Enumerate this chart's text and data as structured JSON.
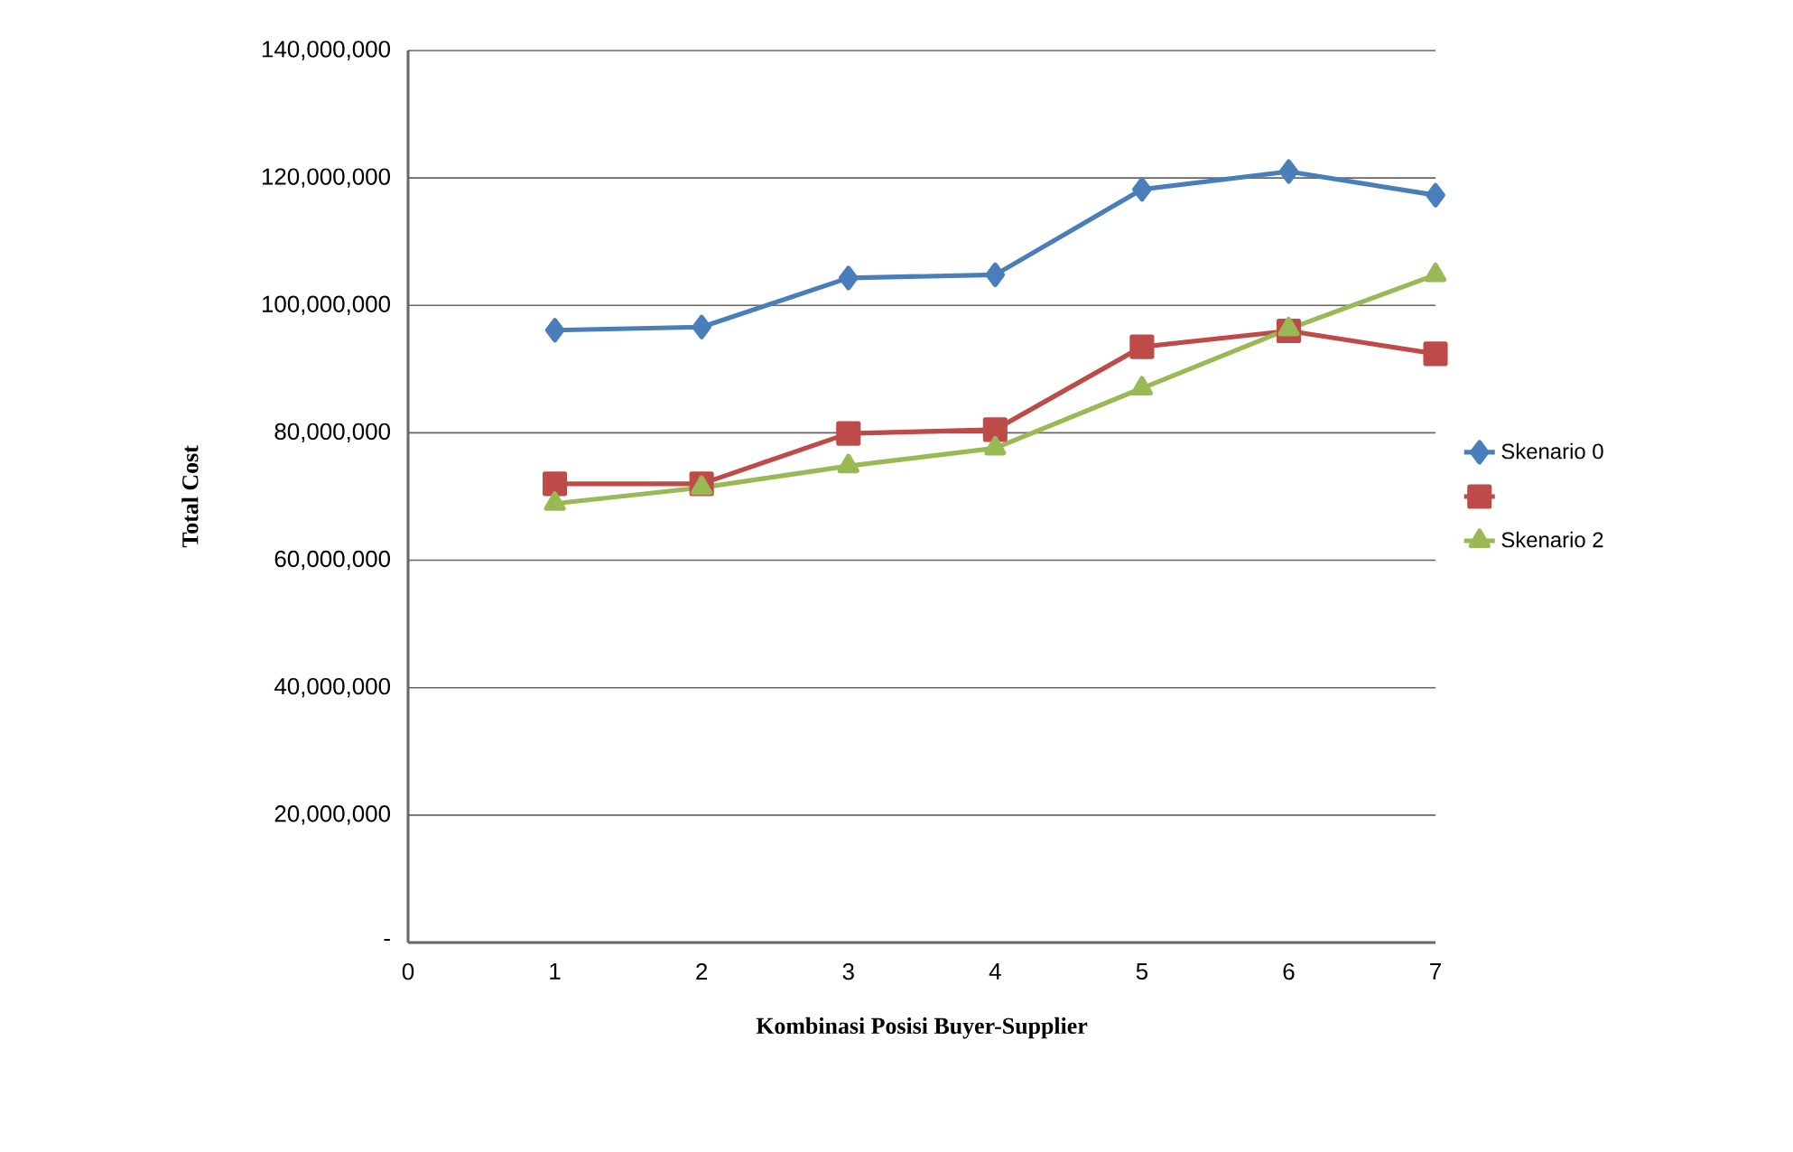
{
  "chart_data": {
    "type": "line",
    "xlabel": "Kombinasi Posisi Buyer-Supplier",
    "ylabel": "Total Cost",
    "x": [
      1,
      2,
      3,
      4,
      5,
      6,
      7
    ],
    "series": [
      {
        "name": "Skenario 0",
        "color": "#4a7ebb",
        "marker": "diamond",
        "values": [
          96100000,
          96600000,
          104300000,
          104800000,
          118200000,
          121000000,
          117300000
        ]
      },
      {
        "color": "#be4b48",
        "marker": "square",
        "values": [
          72000000,
          72000000,
          79900000,
          80500000,
          93500000,
          96000000,
          92400000
        ]
      },
      {
        "name": "Skenario 2",
        "color": "#98b954",
        "marker": "triangle",
        "values": [
          68900000,
          71400000,
          74800000,
          77600000,
          87000000,
          96300000,
          104800000
        ]
      }
    ],
    "xlim": [
      0,
      7
    ],
    "xticks": [
      0,
      1,
      2,
      3,
      4,
      5,
      6,
      7
    ],
    "ylim": [
      0,
      140000000
    ],
    "yticks": [
      {
        "value": 0,
        "label": "-"
      },
      {
        "value": 20000000,
        "label": "20,000,000"
      },
      {
        "value": 40000000,
        "label": "40,000,000"
      },
      {
        "value": 60000000,
        "label": "60,000,000"
      },
      {
        "value": 80000000,
        "label": "80,000,000"
      },
      {
        "value": 100000000,
        "label": "100,000,000"
      },
      {
        "value": 120000000,
        "label": "120,000,000"
      },
      {
        "value": 140000000,
        "label": "140,000,000"
      }
    ],
    "grid": "y",
    "legend": "right",
    "line_style": "solid"
  }
}
